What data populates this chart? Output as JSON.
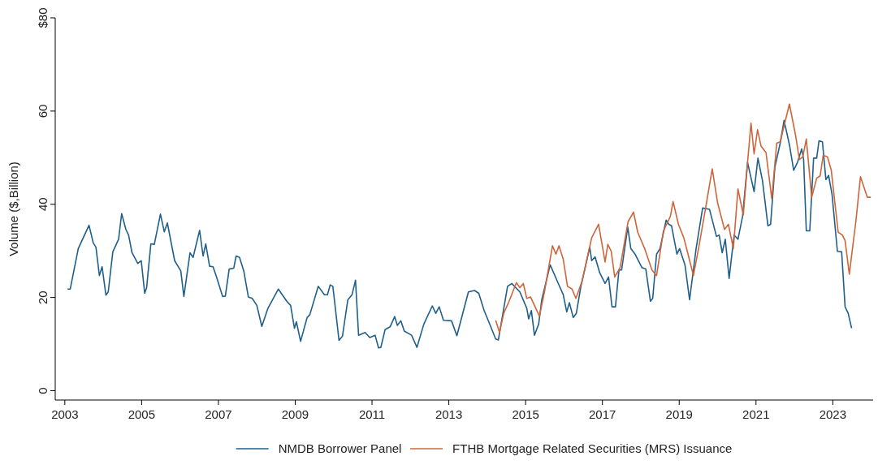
{
  "chart_data": {
    "type": "line",
    "ylabel": "Volume ($,Billion)",
    "xlim": [
      2002.75,
      2024.05
    ],
    "ylim": [
      -2,
      80
    ],
    "xticks": [
      2003,
      2005,
      2007,
      2009,
      2011,
      2013,
      2015,
      2017,
      2019,
      2021,
      2023
    ],
    "yticks": [
      0,
      20,
      40,
      60,
      {
        "value": 80,
        "label": "$80"
      }
    ],
    "grid": false,
    "legend": "bottom",
    "line_style": "solid",
    "marker": "none",
    "series": [
      {
        "name": "NMDB Borrower Panel",
        "color": "#1f5f8b",
        "x": [
          2003.07,
          2003.14,
          2003.35,
          2003.63,
          2003.74,
          2003.81,
          2003.9,
          2003.97,
          2004.07,
          2004.13,
          2004.25,
          2004.4,
          2004.48,
          2004.59,
          2004.66,
          2004.75,
          2004.9,
          2004.99,
          2005.08,
          2005.13,
          2005.24,
          2005.33,
          2005.49,
          2005.59,
          2005.67,
          2005.86,
          2006.02,
          2006.1,
          2006.26,
          2006.34,
          2006.51,
          2006.6,
          2006.67,
          2006.77,
          2006.86,
          2006.95,
          2007.11,
          2007.18,
          2007.28,
          2007.4,
          2007.46,
          2007.55,
          2007.66,
          2007.78,
          2007.88,
          2008.0,
          2008.13,
          2008.29,
          2008.56,
          2008.78,
          2008.88,
          2008.98,
          2009.03,
          2009.14,
          2009.31,
          2009.38,
          2009.6,
          2009.76,
          2009.84,
          2009.91,
          2009.98,
          2010.14,
          2010.23,
          2010.37,
          2010.48,
          2010.57,
          2010.65,
          2010.82,
          2010.94,
          2011.08,
          2011.17,
          2011.23,
          2011.34,
          2011.47,
          2011.59,
          2011.66,
          2011.75,
          2011.84,
          2012.03,
          2012.17,
          2012.35,
          2012.57,
          2012.66,
          2012.75,
          2012.86,
          2013.07,
          2013.21,
          2013.51,
          2013.67,
          2013.78,
          2013.92,
          2014.04,
          2014.22,
          2014.29,
          2014.53,
          2014.64,
          2014.85,
          2015.03,
          2015.08,
          2015.15,
          2015.23,
          2015.34,
          2015.42,
          2015.64,
          2015.84,
          2015.98,
          2016.07,
          2016.14,
          2016.24,
          2016.32,
          2016.44,
          2016.67,
          2016.72,
          2016.81,
          2016.93,
          2017.07,
          2017.16,
          2017.25,
          2017.34,
          2017.43,
          2017.5,
          2017.66,
          2017.74,
          2017.85,
          2018.03,
          2018.13,
          2018.25,
          2018.31,
          2018.41,
          2018.5,
          2018.66,
          2018.73,
          2018.8,
          2018.94,
          2019.01,
          2019.15,
          2019.27,
          2019.44,
          2019.61,
          2019.79,
          2019.97,
          2020.04,
          2020.12,
          2020.2,
          2020.3,
          2020.43,
          2020.53,
          2020.65,
          2020.78,
          2020.95,
          2021.05,
          2021.17,
          2021.31,
          2021.38,
          2021.49,
          2021.63,
          2021.73,
          2021.87,
          2021.98,
          2022.08,
          2022.19,
          2022.24,
          2022.31,
          2022.4,
          2022.5,
          2022.58,
          2022.64,
          2022.73,
          2022.82,
          2022.89,
          2022.98,
          2023.12,
          2023.23,
          2023.32,
          2023.4,
          2023.49
        ],
        "values": [
          21.8,
          21.8,
          30.5,
          35.5,
          31.7,
          30.8,
          24.7,
          26.6,
          20.5,
          21.2,
          29.8,
          32.5,
          38.0,
          34.6,
          33.4,
          29.6,
          27.3,
          27.9,
          20.9,
          22.1,
          31.5,
          31.4,
          37.9,
          34.1,
          36.0,
          27.9,
          25.7,
          20.2,
          29.6,
          28.6,
          34.4,
          28.9,
          31.5,
          26.7,
          26.6,
          24.4,
          20.2,
          20.3,
          26.1,
          26.3,
          28.9,
          28.6,
          25.7,
          20.1,
          19.8,
          18.3,
          13.8,
          17.7,
          21.8,
          19.2,
          18.3,
          13.4,
          14.8,
          10.6,
          15.7,
          16.3,
          22.4,
          20.6,
          20.6,
          22.7,
          22.4,
          10.8,
          11.7,
          19.5,
          20.6,
          23.7,
          11.9,
          12.5,
          11.4,
          11.9,
          9.2,
          9.3,
          13.1,
          13.7,
          15.9,
          14.0,
          15.0,
          12.8,
          11.9,
          9.3,
          14.3,
          18.2,
          16.6,
          18.0,
          15.1,
          15.0,
          11.8,
          21.2,
          21.5,
          20.9,
          17.2,
          14.8,
          11.1,
          10.9,
          22.4,
          23.0,
          21.2,
          17.7,
          15.4,
          17.2,
          11.9,
          14.3,
          19.5,
          27.0,
          23.2,
          20.6,
          16.9,
          18.9,
          15.7,
          16.6,
          22.4,
          30.8,
          27.9,
          28.7,
          25.3,
          23.0,
          24.4,
          18.0,
          18.0,
          25.9,
          25.9,
          35.1,
          30.5,
          29.3,
          26.4,
          26.1,
          19.2,
          19.8,
          29.3,
          30.5,
          36.6,
          35.7,
          35.4,
          29.3,
          30.5,
          27.0,
          19.5,
          30.5,
          39.2,
          38.9,
          33.1,
          33.4,
          29.6,
          32.5,
          24.1,
          33.4,
          32.5,
          37.4,
          49.0,
          42.7,
          49.9,
          45.0,
          35.4,
          35.7,
          47.9,
          53.1,
          58.0,
          52.8,
          47.3,
          49.0,
          51.9,
          49.6,
          34.3,
          34.3,
          49.9,
          49.9,
          53.6,
          53.4,
          45.3,
          46.2,
          42.1,
          29.9,
          29.8,
          18.0,
          16.6,
          13.4
        ]
      },
      {
        "name": "FTHB Mortgage Related Securities (MRS) Issuance",
        "color": "#d0653a",
        "x": [
          2014.22,
          2014.32,
          2014.43,
          2014.57,
          2014.76,
          2014.85,
          2014.94,
          2015.03,
          2015.13,
          2015.36,
          2015.49,
          2015.7,
          2015.79,
          2015.87,
          2015.98,
          2016.09,
          2016.21,
          2016.31,
          2016.47,
          2016.72,
          2016.9,
          2017.07,
          2017.14,
          2017.23,
          2017.32,
          2017.46,
          2017.67,
          2017.81,
          2017.92,
          2018.1,
          2018.29,
          2018.41,
          2018.59,
          2018.77,
          2018.84,
          2018.98,
          2019.12,
          2019.22,
          2019.37,
          2019.51,
          2019.7,
          2019.86,
          2020.0,
          2020.18,
          2020.28,
          2020.41,
          2020.53,
          2020.67,
          2020.78,
          2020.87,
          2020.95,
          2021.04,
          2021.13,
          2021.26,
          2021.41,
          2021.54,
          2021.63,
          2021.87,
          2022.03,
          2022.13,
          2022.22,
          2022.31,
          2022.45,
          2022.58,
          2022.67,
          2022.75,
          2022.86,
          2022.96,
          2023.14,
          2023.25,
          2023.32,
          2023.43,
          2023.6,
          2023.72,
          2023.9,
          2023.99
        ],
        "values": [
          15.1,
          12.5,
          16.6,
          19.2,
          23.2,
          22.1,
          23.0,
          19.8,
          20.1,
          16.0,
          21.2,
          31.1,
          29.3,
          31.1,
          28.2,
          22.4,
          21.8,
          19.8,
          23.5,
          32.8,
          35.7,
          27.6,
          31.4,
          29.9,
          24.4,
          26.4,
          36.3,
          38.3,
          34.0,
          30.5,
          25.9,
          24.7,
          34.3,
          37.4,
          40.6,
          35.7,
          32.8,
          29.6,
          24.7,
          30.8,
          39.8,
          47.6,
          40.3,
          34.6,
          35.7,
          30.5,
          43.3,
          37.7,
          49.0,
          57.4,
          50.8,
          56.0,
          52.5,
          51.1,
          41.2,
          53.1,
          53.4,
          61.5,
          54.8,
          49.6,
          50.2,
          54.0,
          41.5,
          45.6,
          46.1,
          50.5,
          50.2,
          47.3,
          34.0,
          33.4,
          32.2,
          25.0,
          36.3,
          45.9,
          41.5,
          41.5
        ]
      }
    ]
  }
}
